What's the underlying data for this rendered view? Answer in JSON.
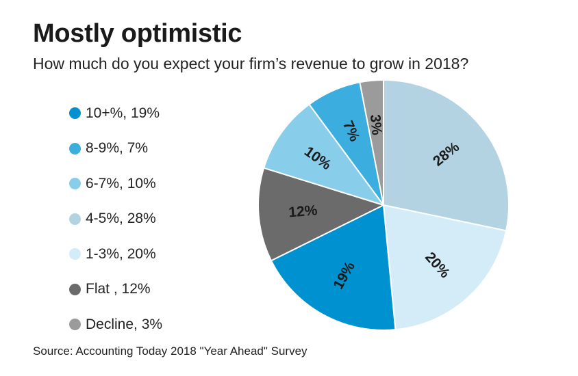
{
  "chart_data": {
    "type": "pie",
    "title": "Mostly optimistic",
    "subtitle": "How much do you expect your firm’s revenue to grow in 2018?",
    "source": "Source: Accounting Today 2018 \"Year Ahead\" Survey",
    "slices": [
      {
        "name": "4-5%",
        "legend": "4-5%, 28%",
        "value": 28,
        "label": "28%",
        "color": "#b3d3e3",
        "label_color": "#1a1a1a"
      },
      {
        "name": "1-3%",
        "legend": "1-3%, 20%",
        "value": 20,
        "label": "20%",
        "color": "#d3ecf8",
        "label_color": "#1a1a1a"
      },
      {
        "name": "10+%",
        "legend": "10+%, 19%",
        "value": 19,
        "label": "19%",
        "color": "#0092d0",
        "label_color": "#1a1a1a"
      },
      {
        "name": "Flat",
        "legend": "Flat , 12%",
        "value": 12,
        "label": "12%",
        "color": "#6b6b6b",
        "label_color": "#1a1a1a"
      },
      {
        "name": "6-7%",
        "legend": "6-7%, 10%",
        "value": 10,
        "label": "10%",
        "color": "#88cde9",
        "label_color": "#1a1a1a"
      },
      {
        "name": "8-9%",
        "legend": "8-9%, 7%",
        "value": 7,
        "label": "7%",
        "color": "#3badde",
        "label_color": "#1a1a1a"
      },
      {
        "name": "Decline",
        "legend": "Decline, 3%",
        "value": 3,
        "label": "3%",
        "color": "#9b9b9b",
        "label_color": "#1a1a1a"
      }
    ],
    "legend_order": [
      "10+%",
      "8-9%",
      "6-7%",
      "4-5%",
      "1-3%",
      "Flat",
      "Decline"
    ]
  }
}
